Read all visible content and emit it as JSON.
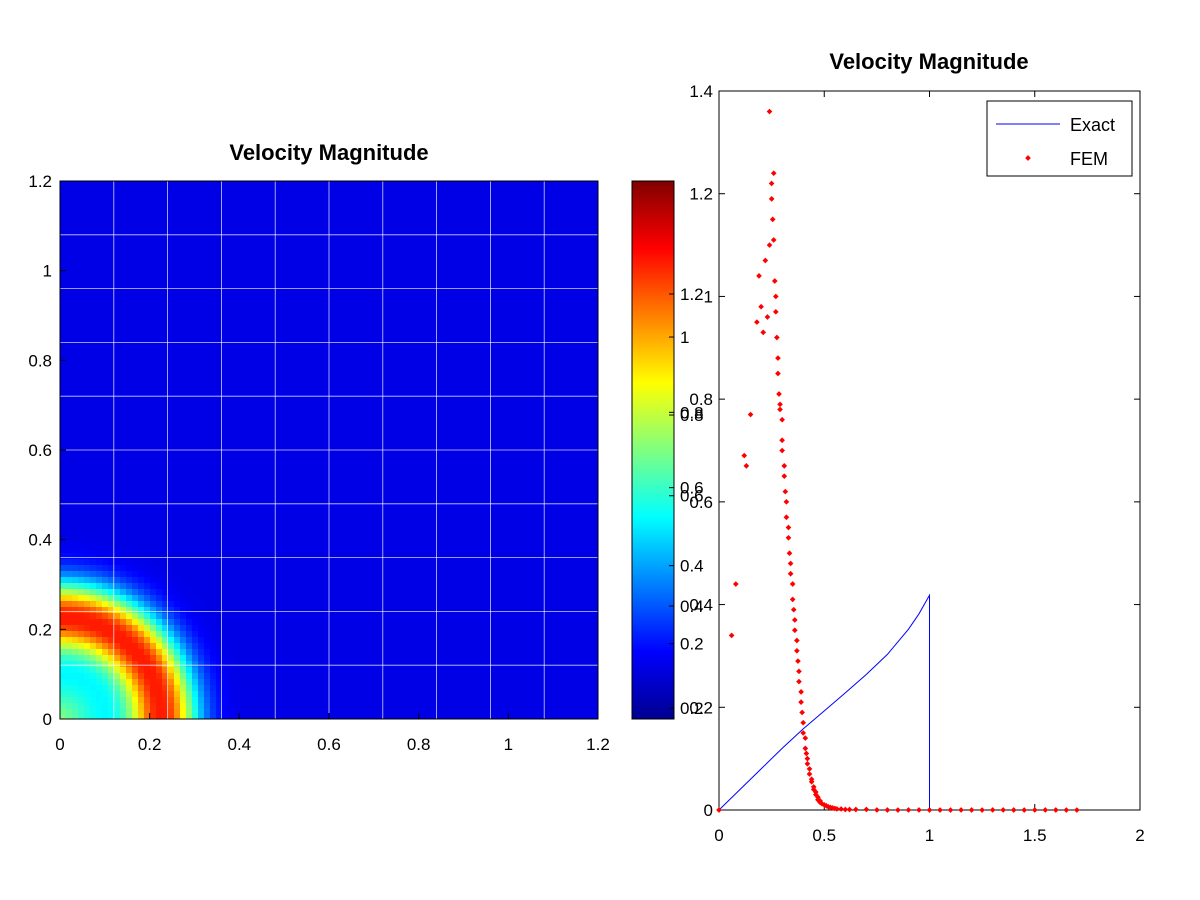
{
  "chart_data": [
    {
      "type": "heatmap",
      "title": "Velocity Magnitude",
      "xlabel": "",
      "ylabel": "",
      "xlim": [
        0,
        1.2
      ],
      "ylim": [
        0,
        1.2
      ],
      "x_ticks": [
        "0",
        "0.2",
        "0.4",
        "0.6",
        "0.8",
        "1",
        "1.2"
      ],
      "y_ticks": [
        "0",
        "0.2",
        "0.4",
        "0.6",
        "0.8",
        "1",
        "1.2"
      ],
      "colormap": "jet",
      "mesh": {
        "x_lines": [
          0.12,
          0.24,
          0.36,
          0.48,
          0.6,
          0.72,
          0.84,
          0.96,
          1.08
        ],
        "y_lines": [
          0.12,
          0.24,
          0.36,
          0.48,
          0.6,
          0.72,
          0.84,
          0.96,
          1.08
        ]
      },
      "field": {
        "peak_radius": 0.23,
        "peak_width": 0.075,
        "color_threshold": 0.33
      },
      "colorbar": {
        "ticks": [
          {
            "label": "1.2",
            "level": 0.79
          },
          {
            "label": "1",
            "level": 0.71
          },
          {
            "label": "0.8",
            "level": 0.57
          },
          {
            "label": "0.8",
            "level": 0.565
          },
          {
            "label": "0.6",
            "level": 0.43
          },
          {
            "label": "0.6",
            "level": 0.415
          },
          {
            "label": "0.4",
            "level": 0.285
          },
          {
            "label": "0.4",
            "level": 0.21
          },
          {
            "label": "0.2",
            "level": 0.14
          },
          {
            "label": "0.2",
            "level": 0.02
          }
        ]
      }
    },
    {
      "type": "line",
      "title": "Velocity Magnitude",
      "xlabel": "",
      "ylabel": "",
      "xlim": [
        0,
        2
      ],
      "ylim": [
        0,
        1.4
      ],
      "x_ticks": [
        "0",
        "0.5",
        "1",
        "1.5",
        "2"
      ],
      "y_ticks": [
        {
          "label": "0",
          "value": 0
        },
        {
          "label": "0.2",
          "value": 0.2
        },
        {
          "label": "0.4",
          "value": 0.4
        },
        {
          "label": "0.6",
          "value": 0.6
        },
        {
          "label": "0.8",
          "value": 0.8
        },
        {
          "label": "1",
          "value": 1.0
        },
        {
          "label": "1.2",
          "value": 1.2
        },
        {
          "label": "1.4",
          "value": 1.4
        }
      ],
      "legend": {
        "placement": "top-right",
        "entries": [
          "Exact",
          "FEM"
        ]
      },
      "series": [
        {
          "name": "Exact",
          "style": "line",
          "color": "#0000ff",
          "x": [
            0,
            0.1,
            0.2,
            0.3,
            0.4,
            0.5,
            0.6,
            0.7,
            0.8,
            0.9,
            0.95,
            1.0,
            1.0
          ],
          "y": [
            0,
            0.04,
            0.08,
            0.12,
            0.158,
            0.193,
            0.228,
            0.264,
            0.303,
            0.352,
            0.382,
            0.418,
            0
          ]
        },
        {
          "name": "FEM",
          "style": "markers",
          "color": "#ff0000",
          "x": [
            0.0,
            0.06,
            0.08,
            0.12,
            0.13,
            0.15,
            0.18,
            0.19,
            0.2,
            0.21,
            0.22,
            0.23,
            0.24,
            0.24,
            0.25,
            0.25,
            0.255,
            0.26,
            0.26,
            0.265,
            0.27,
            0.27,
            0.275,
            0.28,
            0.28,
            0.285,
            0.29,
            0.29,
            0.3,
            0.3,
            0.3,
            0.31,
            0.31,
            0.315,
            0.32,
            0.32,
            0.33,
            0.33,
            0.335,
            0.34,
            0.34,
            0.35,
            0.35,
            0.355,
            0.36,
            0.36,
            0.37,
            0.37,
            0.375,
            0.38,
            0.38,
            0.39,
            0.39,
            0.395,
            0.4,
            0.4,
            0.41,
            0.41,
            0.415,
            0.42,
            0.42,
            0.43,
            0.43,
            0.44,
            0.44,
            0.45,
            0.45,
            0.46,
            0.46,
            0.47,
            0.47,
            0.48,
            0.48,
            0.49,
            0.5,
            0.51,
            0.52,
            0.53,
            0.54,
            0.55,
            0.56,
            0.58,
            0.6,
            0.62,
            0.65,
            0.7,
            0.75,
            0.8,
            0.85,
            0.9,
            0.95,
            1.0,
            1.05,
            1.1,
            1.15,
            1.2,
            1.25,
            1.3,
            1.35,
            1.4,
            1.45,
            1.5,
            1.55,
            1.6,
            1.65,
            1.7
          ],
          "y": [
            0.0,
            0.34,
            0.44,
            0.69,
            0.67,
            0.77,
            0.95,
            1.04,
            0.98,
            0.93,
            1.07,
            0.96,
            1.36,
            1.1,
            1.22,
            1.19,
            1.15,
            1.24,
            1.11,
            1.03,
            1.0,
            0.97,
            0.92,
            0.88,
            0.85,
            0.81,
            0.79,
            0.78,
            0.76,
            0.72,
            0.7,
            0.67,
            0.65,
            0.62,
            0.6,
            0.57,
            0.55,
            0.53,
            0.5,
            0.48,
            0.46,
            0.44,
            0.41,
            0.39,
            0.37,
            0.35,
            0.33,
            0.31,
            0.29,
            0.27,
            0.25,
            0.23,
            0.21,
            0.19,
            0.17,
            0.15,
            0.14,
            0.12,
            0.11,
            0.1,
            0.09,
            0.08,
            0.07,
            0.06,
            0.055,
            0.045,
            0.04,
            0.035,
            0.03,
            0.025,
            0.02,
            0.018,
            0.015,
            0.012,
            0.01,
            0.008,
            0.006,
            0.005,
            0.004,
            0.003,
            0.002,
            0.002,
            0.001,
            0.001,
            0.001,
            0.001,
            0.0,
            0.0,
            0.0,
            0.0,
            0.0,
            0.0,
            0.0,
            0.0,
            0.0,
            0.0,
            0.0,
            0.0,
            0.0,
            0.0,
            0.0,
            0.0,
            0.0,
            0.0,
            0.0,
            0.0
          ]
        }
      ]
    }
  ]
}
